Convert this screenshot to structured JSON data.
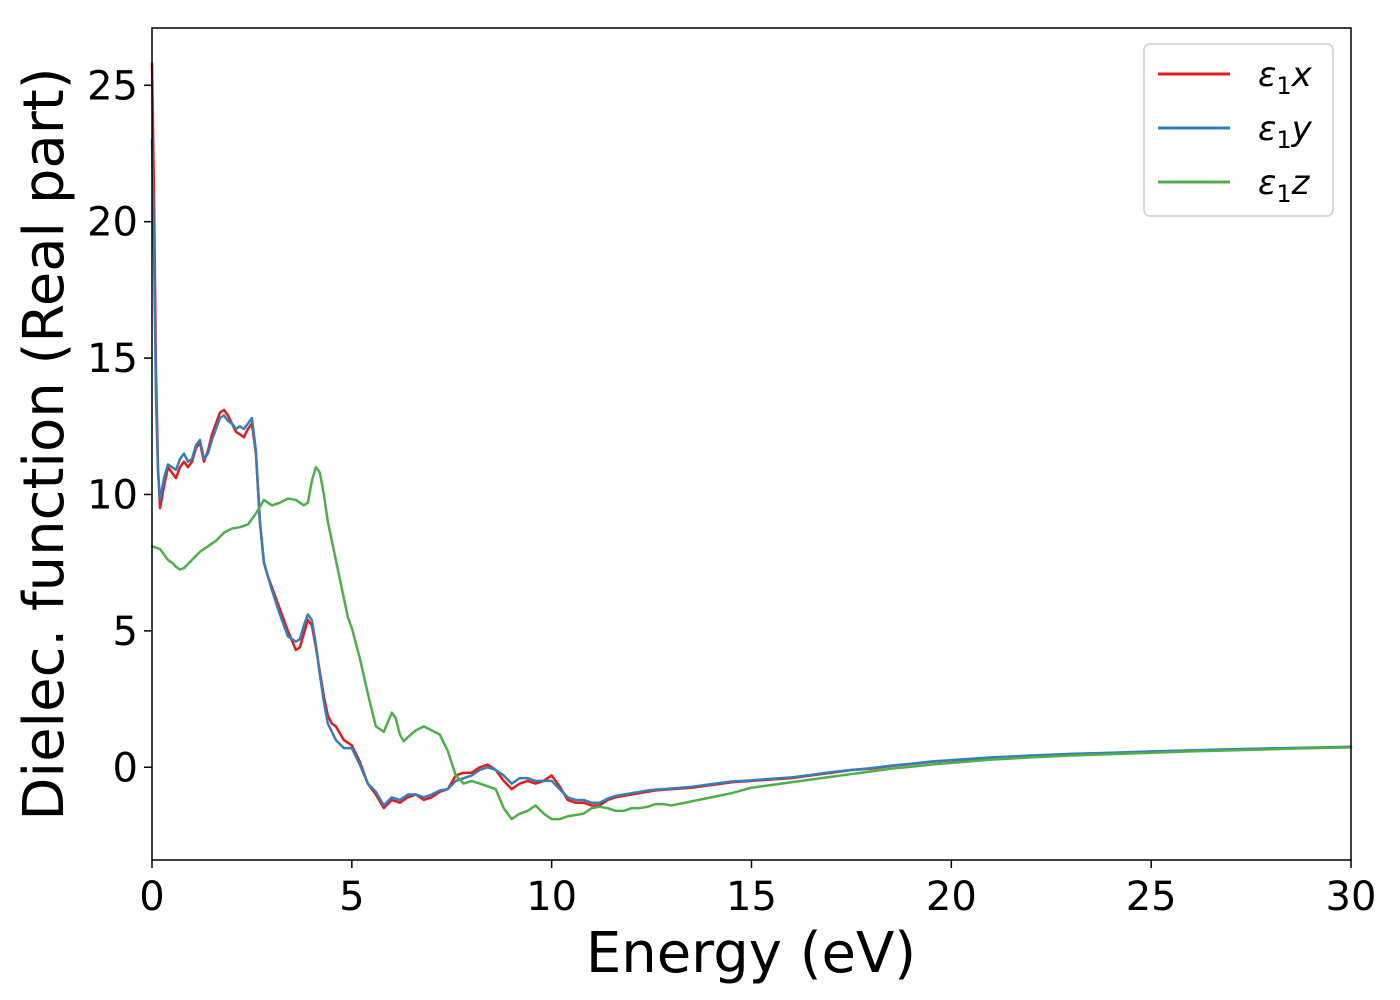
{
  "chart_data": {
    "type": "line",
    "xlabel": "Energy (eV)",
    "ylabel": "Dielec. function (Real part)",
    "xlim": [
      0,
      30
    ],
    "ylim": [
      -3.4,
      27.1
    ],
    "xticks": [
      0,
      5,
      10,
      15,
      20,
      25,
      30
    ],
    "yticks": [
      0,
      5,
      10,
      15,
      20,
      25
    ],
    "grid": false,
    "legend": "top-right",
    "series": [
      {
        "name": "ε1x",
        "legend": {
          "main": "ε",
          "sub": "1",
          "var": "x"
        },
        "color": "#e41a1c",
        "x": [
          0.0,
          0.05,
          0.1,
          0.15,
          0.2,
          0.3,
          0.4,
          0.5,
          0.6,
          0.7,
          0.8,
          0.9,
          1.0,
          1.1,
          1.2,
          1.3,
          1.4,
          1.5,
          1.6,
          1.7,
          1.8,
          1.9,
          2.0,
          2.1,
          2.2,
          2.3,
          2.4,
          2.5,
          2.6,
          2.7,
          2.8,
          2.9,
          3.0,
          3.2,
          3.4,
          3.6,
          3.7,
          3.8,
          3.9,
          4.0,
          4.1,
          4.2,
          4.3,
          4.4,
          4.5,
          4.6,
          4.8,
          5.0,
          5.2,
          5.4,
          5.6,
          5.8,
          6.0,
          6.2,
          6.4,
          6.6,
          6.8,
          7.0,
          7.2,
          7.4,
          7.6,
          7.8,
          8.0,
          8.2,
          8.4,
          8.6,
          8.8,
          9.0,
          9.2,
          9.4,
          9.6,
          9.8,
          10.0,
          10.2,
          10.4,
          10.6,
          10.8,
          11.0,
          11.2,
          11.4,
          11.6,
          11.8,
          12.0,
          12.2,
          12.4,
          12.6,
          13.0,
          13.5,
          14.0,
          14.5,
          15.0,
          15.5,
          16.0,
          16.5,
          17.0,
          17.5,
          18.0,
          18.5,
          19.0,
          19.5,
          20.0,
          21.0,
          22.0,
          23.0,
          24.0,
          25.0,
          26.0,
          27.0,
          28.0,
          29.0,
          30.0
        ],
        "y": [
          25.8,
          21.0,
          14.5,
          11.0,
          9.5,
          10.3,
          11.0,
          10.8,
          10.6,
          11.0,
          11.2,
          11.0,
          11.2,
          11.7,
          11.9,
          11.2,
          11.6,
          12.2,
          12.6,
          13.0,
          13.1,
          12.9,
          12.6,
          12.3,
          12.2,
          12.1,
          12.4,
          12.6,
          11.5,
          9.0,
          7.5,
          7.0,
          6.6,
          5.8,
          5.0,
          4.3,
          4.4,
          4.9,
          5.4,
          5.2,
          4.4,
          3.5,
          2.6,
          1.9,
          1.6,
          1.5,
          1.0,
          0.8,
          0.2,
          -0.6,
          -1.0,
          -1.5,
          -1.2,
          -1.3,
          -1.1,
          -1.0,
          -1.2,
          -1.1,
          -0.9,
          -0.8,
          -0.3,
          -0.2,
          -0.2,
          0.0,
          0.1,
          -0.1,
          -0.5,
          -0.8,
          -0.6,
          -0.5,
          -0.6,
          -0.5,
          -0.3,
          -0.7,
          -1.2,
          -1.3,
          -1.3,
          -1.4,
          -1.4,
          -1.2,
          -1.1,
          -1.05,
          -1.0,
          -0.95,
          -0.9,
          -0.85,
          -0.8,
          -0.75,
          -0.65,
          -0.55,
          -0.5,
          -0.45,
          -0.4,
          -0.3,
          -0.2,
          -0.1,
          -0.05,
          0.05,
          0.12,
          0.2,
          0.25,
          0.35,
          0.42,
          0.48,
          0.52,
          0.57,
          0.61,
          0.65,
          0.68,
          0.71,
          0.74
        ]
      },
      {
        "name": "ε1y",
        "legend": {
          "main": "ε",
          "sub": "1",
          "var": "y"
        },
        "color": "#377eb8",
        "x": [
          0.0,
          0.05,
          0.1,
          0.15,
          0.2,
          0.3,
          0.4,
          0.5,
          0.6,
          0.7,
          0.8,
          0.9,
          1.0,
          1.1,
          1.2,
          1.3,
          1.4,
          1.5,
          1.6,
          1.7,
          1.8,
          1.9,
          2.0,
          2.1,
          2.2,
          2.3,
          2.4,
          2.5,
          2.6,
          2.7,
          2.8,
          2.9,
          3.0,
          3.2,
          3.4,
          3.6,
          3.7,
          3.8,
          3.9,
          4.0,
          4.1,
          4.2,
          4.3,
          4.4,
          4.5,
          4.6,
          4.8,
          5.0,
          5.2,
          5.4,
          5.6,
          5.8,
          6.0,
          6.2,
          6.4,
          6.6,
          6.8,
          7.0,
          7.2,
          7.4,
          7.6,
          7.8,
          8.0,
          8.2,
          8.4,
          8.6,
          8.8,
          9.0,
          9.2,
          9.4,
          9.6,
          9.8,
          10.0,
          10.2,
          10.4,
          10.6,
          10.8,
          11.0,
          11.2,
          11.4,
          11.6,
          11.8,
          12.0,
          12.2,
          12.4,
          12.6,
          13.0,
          13.5,
          14.0,
          14.5,
          15.0,
          15.5,
          16.0,
          16.5,
          17.0,
          17.5,
          18.0,
          18.5,
          19.0,
          19.5,
          20.0,
          21.0,
          22.0,
          23.0,
          24.0,
          25.0,
          26.0,
          27.0,
          28.0,
          29.0,
          30.0
        ],
        "y": [
          23.0,
          19.0,
          13.5,
          10.8,
          9.8,
          10.6,
          11.1,
          11.0,
          10.9,
          11.3,
          11.5,
          11.2,
          11.3,
          11.8,
          12.0,
          11.3,
          11.5,
          12.0,
          12.4,
          12.8,
          12.9,
          12.7,
          12.6,
          12.4,
          12.5,
          12.4,
          12.6,
          12.8,
          11.6,
          9.0,
          7.5,
          7.0,
          6.5,
          5.6,
          4.8,
          4.6,
          4.7,
          5.2,
          5.6,
          5.4,
          4.5,
          3.4,
          2.4,
          1.6,
          1.3,
          1.0,
          0.7,
          0.7,
          0.1,
          -0.6,
          -0.9,
          -1.4,
          -1.1,
          -1.2,
          -1.0,
          -1.0,
          -1.1,
          -1.0,
          -0.85,
          -0.8,
          -0.5,
          -0.4,
          -0.3,
          -0.1,
          0.0,
          -0.1,
          -0.3,
          -0.6,
          -0.4,
          -0.4,
          -0.5,
          -0.5,
          -0.5,
          -0.8,
          -1.1,
          -1.2,
          -1.2,
          -1.3,
          -1.3,
          -1.15,
          -1.05,
          -1.0,
          -0.95,
          -0.9,
          -0.85,
          -0.82,
          -0.78,
          -0.72,
          -0.62,
          -0.52,
          -0.48,
          -0.42,
          -0.37,
          -0.28,
          -0.18,
          -0.1,
          -0.03,
          0.06,
          0.13,
          0.21,
          0.26,
          0.36,
          0.43,
          0.49,
          0.53,
          0.58,
          0.62,
          0.66,
          0.69,
          0.72,
          0.75
        ]
      },
      {
        "name": "ε1z",
        "legend": {
          "main": "ε",
          "sub": "1",
          "var": "z"
        },
        "color": "#4daf4a",
        "x": [
          0.0,
          0.1,
          0.2,
          0.3,
          0.4,
          0.5,
          0.6,
          0.7,
          0.8,
          1.0,
          1.2,
          1.4,
          1.6,
          1.8,
          2.0,
          2.2,
          2.4,
          2.6,
          2.8,
          3.0,
          3.2,
          3.4,
          3.6,
          3.8,
          3.9,
          4.0,
          4.1,
          4.2,
          4.3,
          4.4,
          4.5,
          4.6,
          4.7,
          4.8,
          4.9,
          5.0,
          5.2,
          5.4,
          5.6,
          5.8,
          6.0,
          6.1,
          6.2,
          6.3,
          6.4,
          6.6,
          6.8,
          7.0,
          7.2,
          7.4,
          7.6,
          7.8,
          8.0,
          8.2,
          8.4,
          8.6,
          8.8,
          9.0,
          9.2,
          9.4,
          9.6,
          9.8,
          10.0,
          10.2,
          10.4,
          10.6,
          10.8,
          11.0,
          11.2,
          11.4,
          11.6,
          11.8,
          12.0,
          12.2,
          12.4,
          12.6,
          12.8,
          13.0,
          13.5,
          14.0,
          14.5,
          15.0,
          15.5,
          16.0,
          16.5,
          17.0,
          17.5,
          18.0,
          18.5,
          19.0,
          19.5,
          20.0,
          21.0,
          22.0,
          23.0,
          24.0,
          25.0,
          26.0,
          27.0,
          28.0,
          29.0,
          30.0
        ],
        "y": [
          8.1,
          8.05,
          8.0,
          7.8,
          7.6,
          7.5,
          7.35,
          7.25,
          7.3,
          7.6,
          7.9,
          8.1,
          8.3,
          8.6,
          8.75,
          8.8,
          8.9,
          9.3,
          9.8,
          9.6,
          9.7,
          9.85,
          9.8,
          9.6,
          9.7,
          10.5,
          11.0,
          10.8,
          10.0,
          9.0,
          8.3,
          7.6,
          6.9,
          6.2,
          5.5,
          5.1,
          4.0,
          2.7,
          1.5,
          1.3,
          2.0,
          1.8,
          1.2,
          0.95,
          1.1,
          1.35,
          1.5,
          1.35,
          1.2,
          0.6,
          -0.3,
          -0.6,
          -0.5,
          -0.6,
          -0.7,
          -0.8,
          -1.5,
          -1.9,
          -1.7,
          -1.6,
          -1.4,
          -1.7,
          -1.9,
          -1.9,
          -1.8,
          -1.75,
          -1.7,
          -1.5,
          -1.45,
          -1.5,
          -1.6,
          -1.6,
          -1.5,
          -1.5,
          -1.45,
          -1.35,
          -1.35,
          -1.4,
          -1.25,
          -1.1,
          -0.95,
          -0.75,
          -0.65,
          -0.55,
          -0.45,
          -0.35,
          -0.25,
          -0.15,
          -0.05,
          0.02,
          0.1,
          0.16,
          0.28,
          0.36,
          0.43,
          0.48,
          0.53,
          0.58,
          0.62,
          0.66,
          0.7,
          0.73
        ]
      }
    ]
  }
}
